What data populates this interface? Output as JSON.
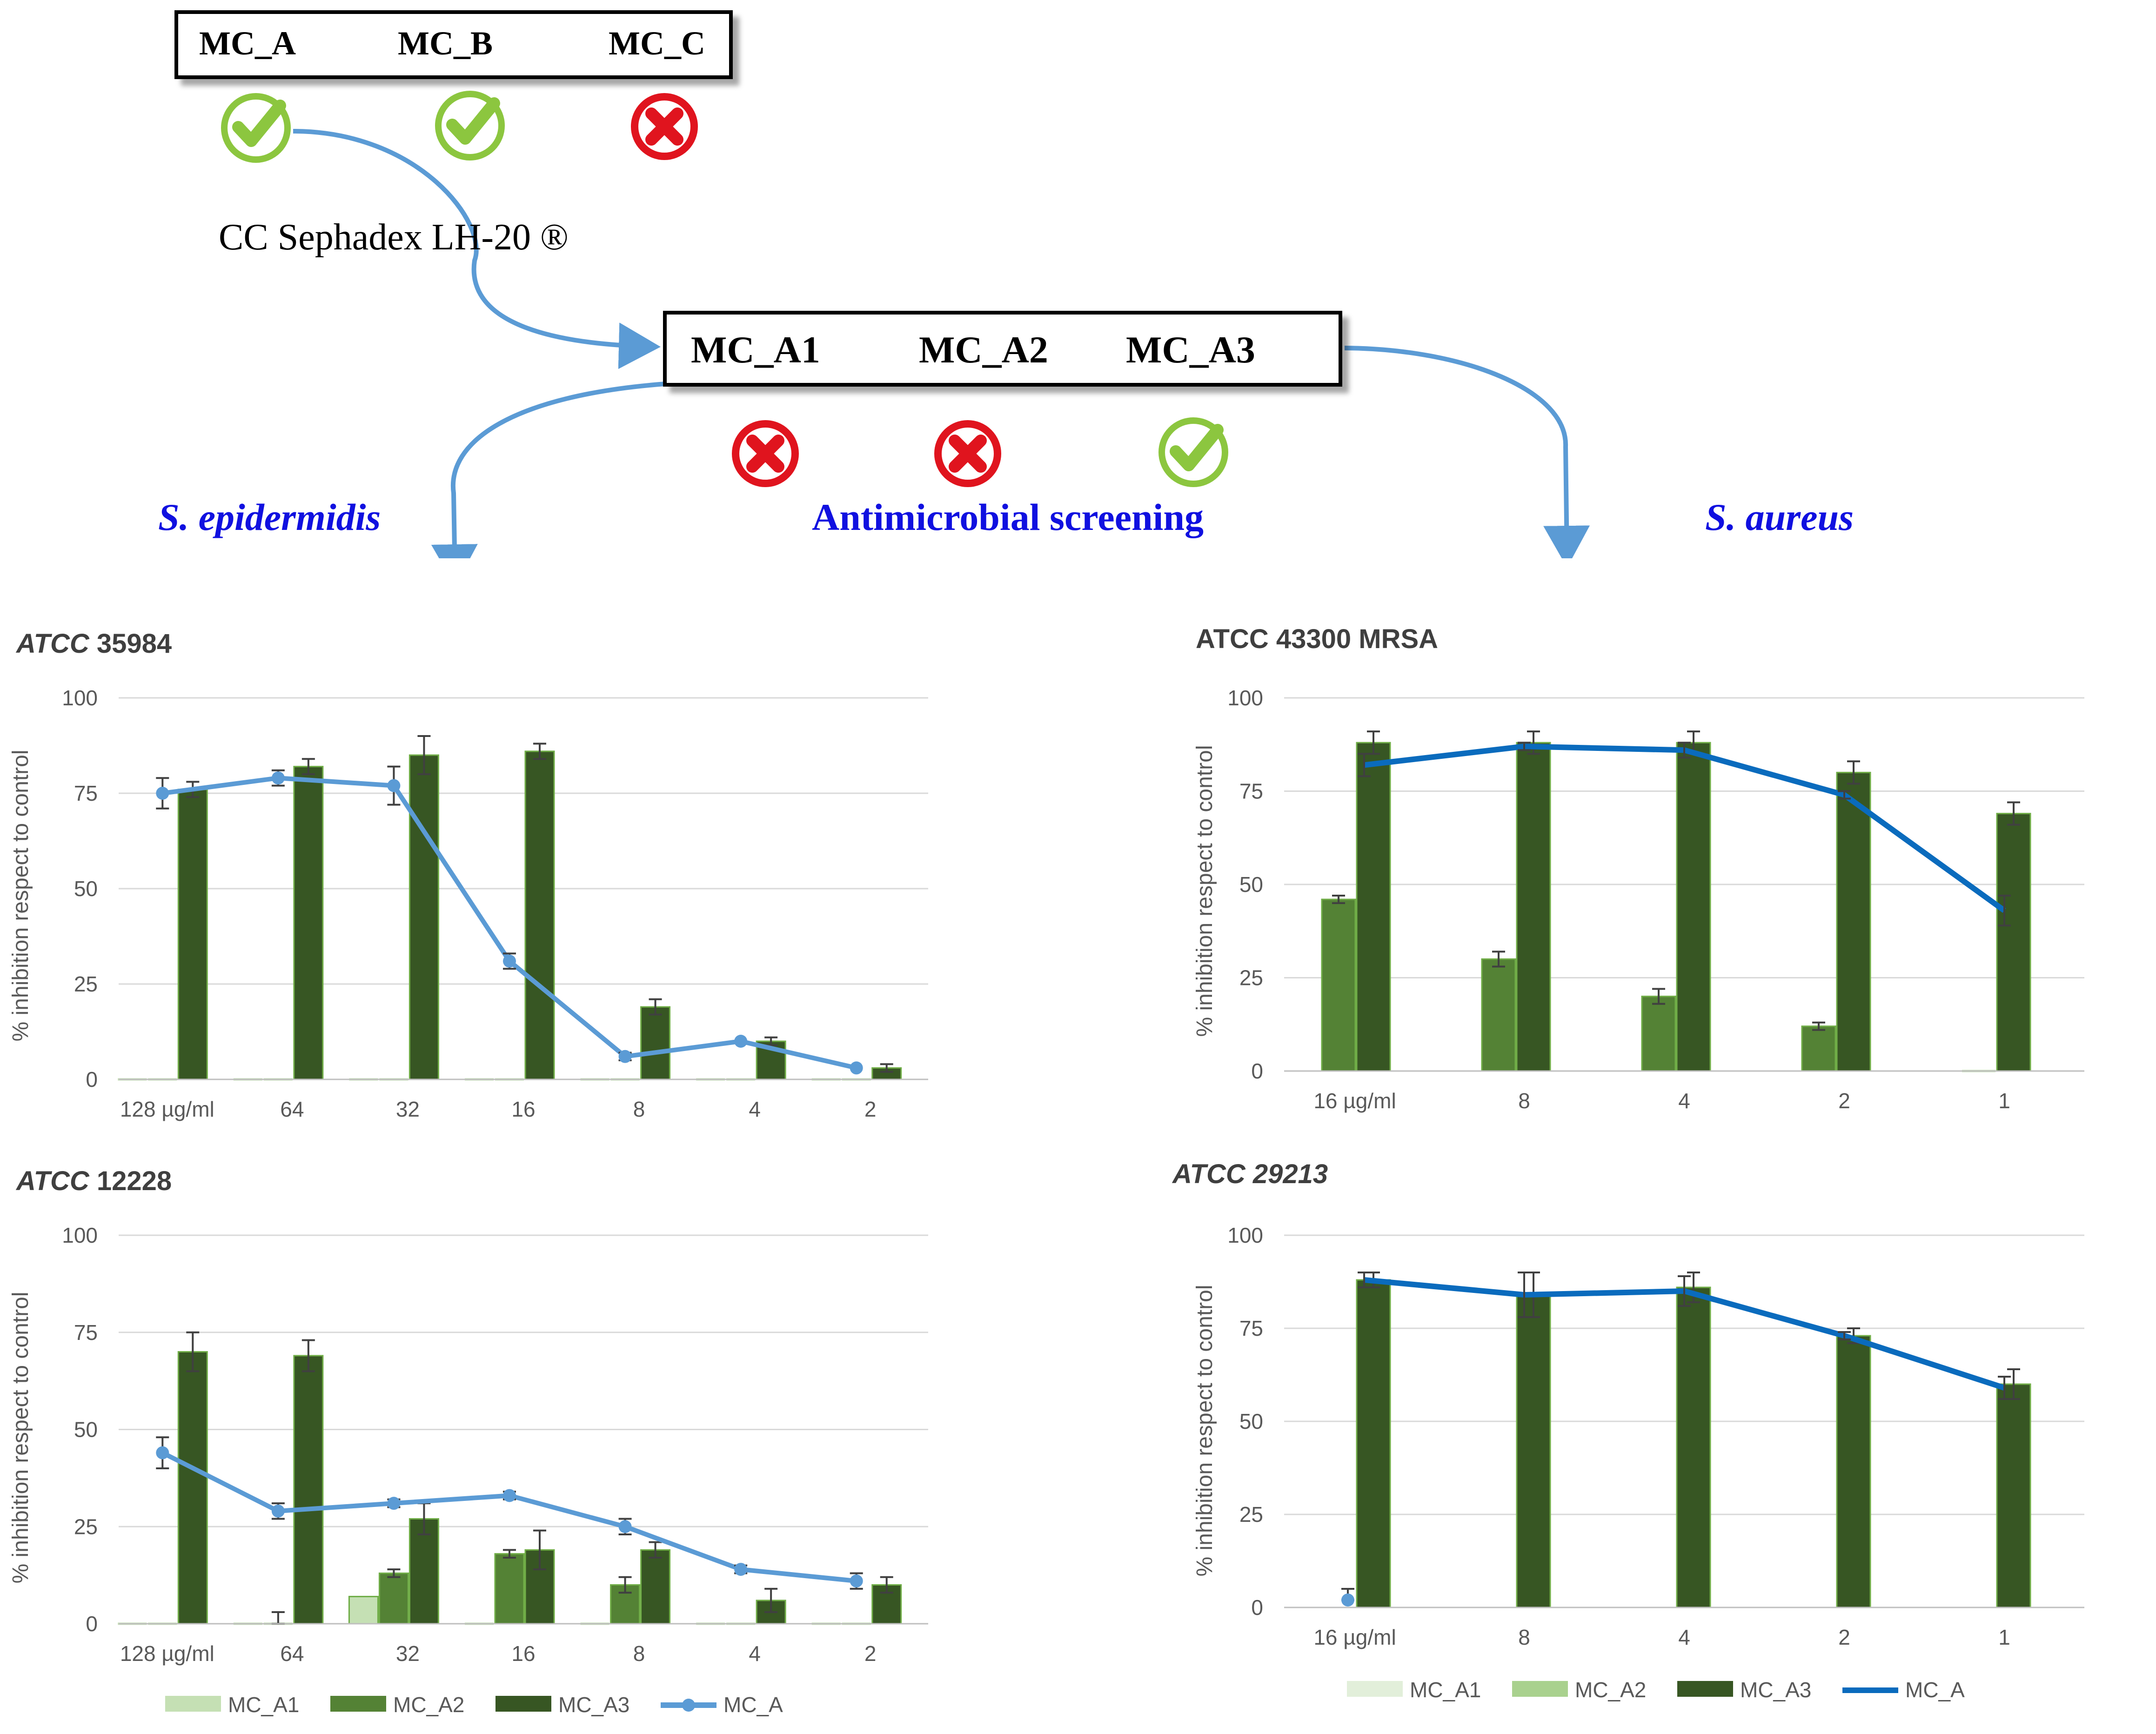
{
  "top": {
    "fractions": [
      "MC_A",
      "MC_B",
      "MC_C"
    ],
    "fraction_status": [
      "active",
      "active",
      "inactive"
    ],
    "method_label": "CC Sephadex LH-20 ®",
    "subfractions": [
      "MC_A1",
      "MC_A2",
      "MC_A3"
    ],
    "subfraction_status": [
      "inactive",
      "inactive",
      "active"
    ],
    "left_organism": "S. epidermidis",
    "center_label": "Antimicrobial screening",
    "right_organism": "S. aureus"
  },
  "colors": {
    "check": "#8cc63f",
    "cross": "#e0141e",
    "arrow": "#5b9bd5",
    "mc_a1": "#c5e0b4",
    "mc_a2": "#548235",
    "mc_a3": "#375623",
    "mc_a_light": "#5b9bd5",
    "mc_a_dark": "#0a6bbd",
    "blue_text": "#1010e0"
  },
  "chart_data": [
    {
      "id": "c1",
      "type": "bar",
      "title_italic": "ATCC",
      "title_rest": " 35984",
      "ylabel": "% inhibition respect to control",
      "ylim": [
        0,
        100
      ],
      "yticks": [
        0,
        25,
        50,
        75,
        100
      ],
      "categories": [
        "128 µg/ml",
        "64",
        "32",
        "16",
        "8",
        "4",
        "2"
      ],
      "series": [
        {
          "name": "MC_A1",
          "values": [
            0,
            0,
            0,
            0,
            0,
            0,
            0
          ],
          "errors": [
            0,
            0,
            0,
            0,
            0,
            0,
            0
          ]
        },
        {
          "name": "MC_A2",
          "values": [
            0,
            0,
            0,
            0,
            0,
            0,
            0
          ],
          "errors": [
            0,
            0,
            0,
            0,
            0,
            0,
            0
          ]
        },
        {
          "name": "MC_A3",
          "values": [
            76,
            82,
            85,
            86,
            19,
            10,
            3
          ],
          "errors": [
            2,
            2,
            5,
            2,
            2,
            1,
            1
          ]
        }
      ],
      "line": {
        "name": "MC_A",
        "values": [
          75,
          79,
          77,
          31,
          6,
          10,
          3
        ],
        "errors": [
          4,
          2,
          5,
          2,
          1,
          0,
          0
        ],
        "markers": true,
        "style": "light"
      }
    },
    {
      "id": "c2",
      "type": "bar",
      "title_italic": "ATCC",
      "title_rest": " 12228",
      "ylabel": "% inhibition respect to control",
      "ylim": [
        0,
        100
      ],
      "yticks": [
        0,
        25,
        50,
        75,
        100
      ],
      "categories": [
        "128 µg/ml",
        "64",
        "32",
        "16",
        "8",
        "4",
        "2"
      ],
      "series": [
        {
          "name": "MC_A1",
          "values": [
            0,
            0,
            7,
            0,
            0,
            0,
            0
          ],
          "errors": [
            0,
            0,
            0,
            0,
            0,
            0,
            0
          ]
        },
        {
          "name": "MC_A2",
          "values": [
            0,
            0,
            13,
            18,
            10,
            0,
            0
          ],
          "errors": [
            0,
            3,
            1,
            1,
            2,
            0,
            0
          ]
        },
        {
          "name": "MC_A3",
          "values": [
            70,
            69,
            27,
            19,
            19,
            6,
            10
          ],
          "errors": [
            5,
            4,
            4,
            5,
            2,
            3,
            2
          ]
        }
      ],
      "line": {
        "name": "MC_A",
        "values": [
          44,
          29,
          31,
          33,
          25,
          14,
          11
        ],
        "errors": [
          4,
          2,
          1,
          1,
          2,
          1,
          2
        ],
        "markers": true,
        "style": "light"
      },
      "legend": [
        "MC_A1",
        "MC_A2",
        "MC_A3",
        "MC_A"
      ]
    },
    {
      "id": "c3",
      "type": "bar",
      "title_italic": "",
      "title_rest": "ATCC 43300 MRSA",
      "ylabel": "% inhibition respect to control",
      "ylim": [
        0,
        100
      ],
      "yticks": [
        0,
        25,
        50,
        75,
        100
      ],
      "categories": [
        "16 µg/ml",
        "8",
        "4",
        "2",
        "1"
      ],
      "series": [
        {
          "name": "MC_A2",
          "values": [
            46,
            30,
            20,
            12,
            0
          ],
          "errors": [
            1,
            2,
            2,
            1,
            0
          ]
        },
        {
          "name": "MC_A3",
          "values": [
            88,
            88,
            88,
            80,
            69
          ],
          "errors": [
            3,
            3,
            3,
            3,
            3
          ]
        }
      ],
      "line": {
        "name": "MC_A",
        "values": [
          82,
          87,
          86,
          74,
          43
        ],
        "errors": [
          3,
          1,
          2,
          1,
          4
        ],
        "markers": false,
        "style": "dark"
      }
    },
    {
      "id": "c4",
      "type": "bar",
      "title_italic": "ATCC 29213",
      "title_rest": "",
      "ylabel": "% inhibition respect to control",
      "ylim": [
        0,
        100
      ],
      "yticks": [
        0,
        25,
        50,
        75,
        100
      ],
      "categories": [
        "16 µg/ml",
        "8",
        "4",
        "2",
        "1"
      ],
      "series": [
        {
          "name": "MC_A3",
          "values": [
            88,
            84,
            86,
            73,
            60
          ],
          "errors": [
            2,
            6,
            4,
            2,
            4
          ]
        }
      ],
      "line": {
        "name": "MC_A",
        "values": [
          88,
          84,
          85,
          73,
          59
        ],
        "errors": [
          2,
          6,
          4,
          1,
          3
        ],
        "markers": false,
        "style": "dark"
      },
      "stray_point": {
        "value": 2,
        "error": 3
      },
      "legend": [
        "MC_A1",
        "MC_A2",
        "MC_A3",
        "MC_A"
      ]
    }
  ]
}
